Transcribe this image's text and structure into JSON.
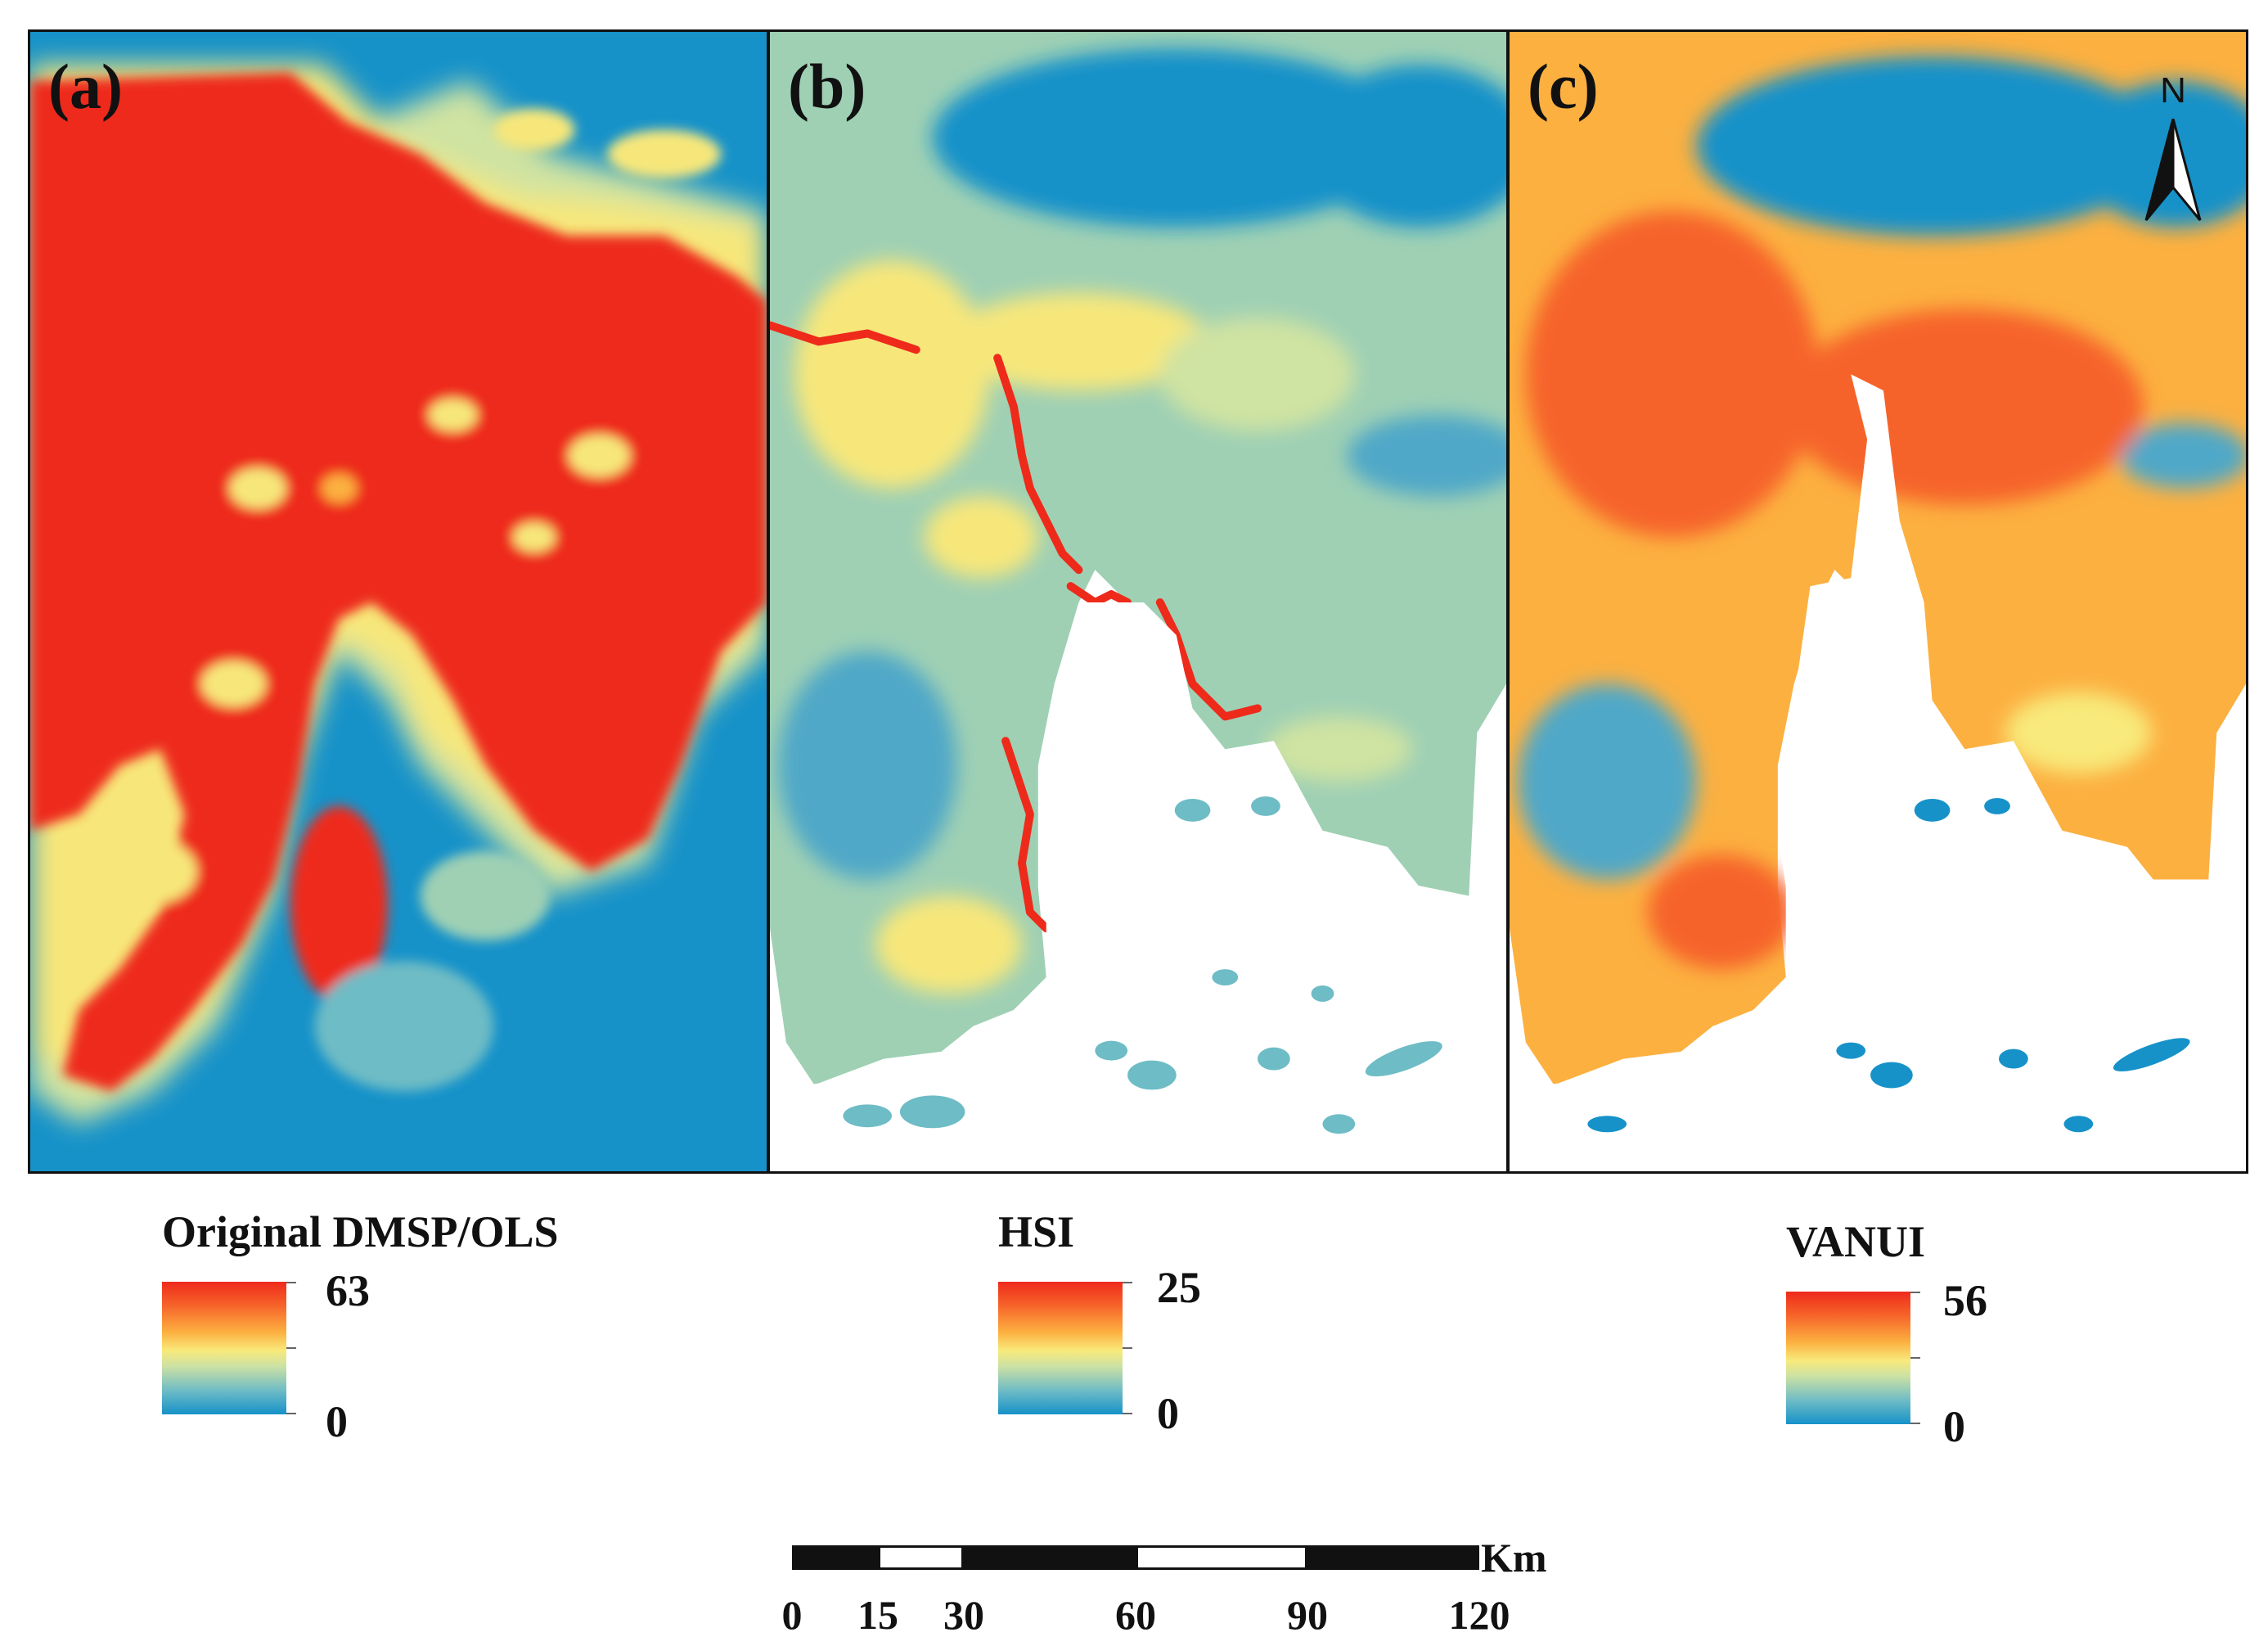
{
  "figure": {
    "panels": [
      {
        "id": "a",
        "label": "(a)",
        "legend_title": "Original DMSP/OLS",
        "legend_max": "63",
        "legend_min": "0"
      },
      {
        "id": "b",
        "label": "(b)",
        "legend_title": "HSI",
        "legend_max": "25",
        "legend_min": "0"
      },
      {
        "id": "c",
        "label": "(c)",
        "legend_title": "VANUI",
        "legend_max": "56",
        "legend_min": "0"
      }
    ],
    "north_arrow": {
      "letter": "N",
      "icon": "north-arrow-icon"
    },
    "scale_bar": {
      "unit": "Km",
      "ticks": [
        "0",
        "15",
        "30",
        "60",
        "90",
        "120"
      ],
      "tick_values": [
        0,
        15,
        30,
        60,
        90,
        120
      ],
      "max_value": 120
    },
    "colors": {
      "high": "#ee2a1b",
      "mid_high": "#fcb040",
      "mid": "#f8ea7c",
      "mid_low": "#9fd0b4",
      "low": "#1692c9",
      "water": "#ffffff",
      "frame": "#111111"
    }
  }
}
